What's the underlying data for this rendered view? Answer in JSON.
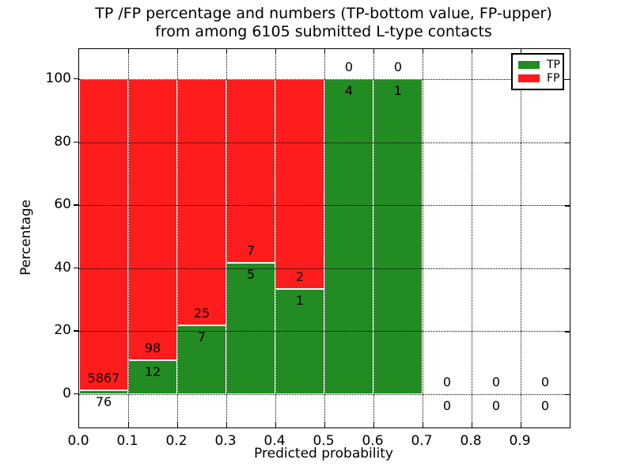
{
  "title": {
    "line1": "TP /FP percentage and numbers (TP-bottom value, FP-upper)",
    "line2": "from among 6105 submitted L-type contacts"
  },
  "axes": {
    "xlabel": "Predicted probability",
    "ylabel": "Percentage",
    "xtick_labels": [
      "0.0",
      "0.1",
      "0.2",
      "0.3",
      "0.4",
      "0.5",
      "0.6",
      "0.7",
      "0.8",
      "0.9"
    ],
    "ytick_labels": [
      "0",
      "20",
      "40",
      "60",
      "80",
      "100"
    ],
    "ytick_values": [
      0,
      20,
      40,
      60,
      80,
      100
    ]
  },
  "legend": {
    "position": "upper right",
    "entries": [
      {
        "label": "TP",
        "color": "#228b22"
      },
      {
        "label": "FP",
        "color": "#ff1c1c"
      }
    ]
  },
  "colors": {
    "tp": "#228b22",
    "fp": "#ff1c1c",
    "bar_edge": "#ffffff",
    "grid": "#000000",
    "background": "#ffffff"
  },
  "chart_data": {
    "type": "bar",
    "stacked": true,
    "title": "TP /FP percentage and numbers (TP-bottom value, FP-upper) from among 6105 submitted L-type contacts",
    "xlabel": "Predicted probability",
    "ylabel": "Percentage",
    "ylim": [
      0,
      100
    ],
    "grid": "dotted",
    "legend_position": "upper right",
    "total_contacts": 6105,
    "bin_width": 0.1,
    "categories": [
      "0.0-0.1",
      "0.1-0.2",
      "0.2-0.3",
      "0.3-0.4",
      "0.4-0.5",
      "0.5-0.6",
      "0.6-0.7",
      "0.7-0.8",
      "0.8-0.9",
      "0.9-1.0"
    ],
    "series": [
      {
        "name": "TP",
        "color": "#228b22",
        "counts": [
          76,
          12,
          7,
          5,
          1,
          4,
          1,
          0,
          0,
          0
        ],
        "pct": [
          1.28,
          10.91,
          21.88,
          41.67,
          33.33,
          100,
          100,
          0,
          0,
          0
        ]
      },
      {
        "name": "FP",
        "color": "#ff1c1c",
        "counts": [
          5867,
          98,
          25,
          7,
          2,
          0,
          0,
          0,
          0,
          0
        ],
        "pct": [
          98.72,
          89.09,
          78.13,
          58.33,
          66.67,
          0,
          0,
          0,
          0,
          0
        ]
      }
    ]
  }
}
